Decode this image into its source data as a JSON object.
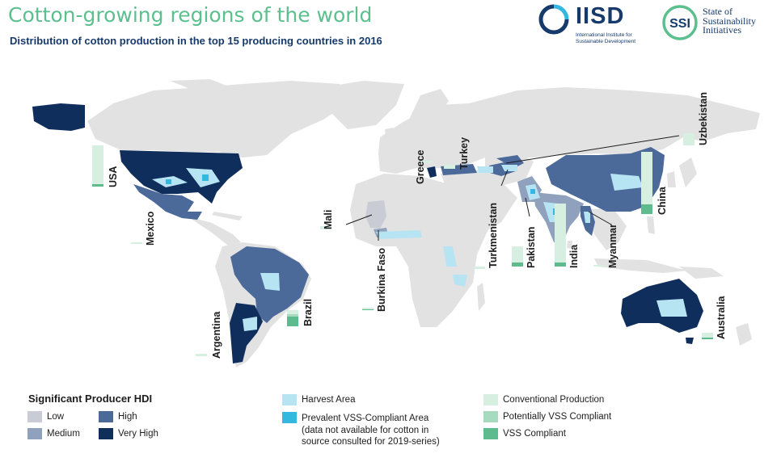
{
  "title": "Cotton-growing regions of the world",
  "subtitle": "Distribution of cotton production in the top 15 producing countries in 2016",
  "logos": {
    "iisd_name": "IISD",
    "iisd_full": "International Institute for\nSustainable Development",
    "ssi_abbr": "SSI",
    "ssi_full": "State of\nSustainability\nInitiatives"
  },
  "countries": {
    "usa": "USA",
    "mexico": "Mexico",
    "brazil": "Brazil",
    "argentina": "Argentina",
    "mali": "Mali",
    "burkina_faso": "Burkina Faso",
    "greece": "Greece",
    "turkey": "Turkey",
    "turkmenistan": "Turkmenistan",
    "pakistan": "Pakistan",
    "india": "India",
    "myanmar": "Myanmar",
    "china": "China",
    "uzbekistan": "Uzbekistan",
    "australia": "Australia"
  },
  "legend": {
    "hdi_title": "Significant Producer HDI",
    "low": "Low",
    "medium": "Medium",
    "high": "High",
    "very_high": "Very High",
    "harvest_area": "Harvest Area",
    "vss_area": "Prevalent VSS-Compliant Area\n(data not available for cotton in\nsource consulted for 2019-series)",
    "conventional": "Conventional Production",
    "potentially_vss": "Potentially VSS Compliant",
    "vss_compliant": "VSS Compliant"
  },
  "colors": {
    "title": "#5cbf8e",
    "hdi_low": "#c9ccd4",
    "hdi_medium": "#8fa1bd",
    "hdi_high": "#4b6a9a",
    "hdi_very_high": "#0f2e5c",
    "land": "#e2e2e2",
    "harvest_area": "#b7e4f3",
    "vss_area": "#35b8e0",
    "conventional": "#d7efe1",
    "potentially_vss": "#a6dbbf",
    "vss_compliant": "#5dbb8e"
  },
  "icons": {
    "iisd_logo": "iisd-ring-logo",
    "ssi_logo": "ssi-circle-logo"
  }
}
